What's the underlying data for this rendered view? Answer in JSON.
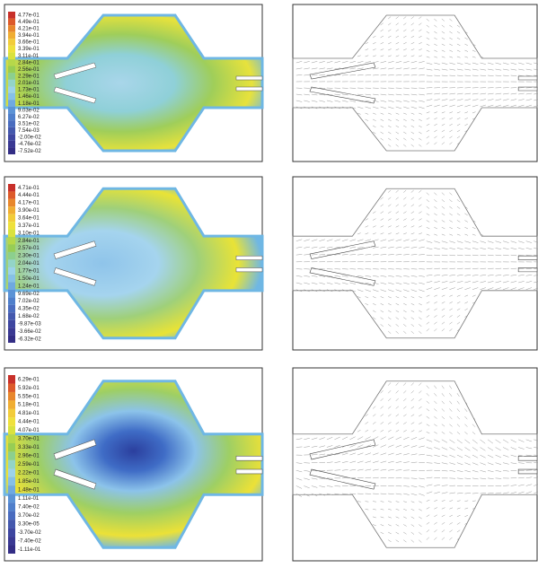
{
  "panels": [
    {
      "colorbar": [
        "4.77e-01",
        "4.49e-01",
        "4.21e-01",
        "3.94e-01",
        "3.66e-01",
        "3.39e-01",
        "3.11e-01",
        "2.84e-01",
        "2.56e-01",
        "2.29e-01",
        "2.01e-01",
        "1.73e-01",
        "1.46e-01",
        "1.18e-01",
        "9.03e-02",
        "6.27e-02",
        "3.51e-02",
        "7.54e-03",
        "-2.00e-02",
        "-4.76e-02",
        "-7.52e-02"
      ]
    },
    {
      "colorbar": [
        "4.71e-01",
        "4.44e-01",
        "4.17e-01",
        "3.90e-01",
        "3.64e-01",
        "3.37e-01",
        "3.10e-01",
        "2.84e-01",
        "2.57e-01",
        "2.30e-01",
        "2.04e-01",
        "1.77e-01",
        "1.50e-01",
        "1.24e-01",
        "9.69e-02",
        "7.02e-02",
        "4.35e-02",
        "1.68e-02",
        "-9.87e-03",
        "-3.66e-02",
        "-6.32e-02"
      ]
    },
    {
      "colorbar": [
        "6.29e-01",
        "5.92e-01",
        "5.55e-01",
        "5.18e-01",
        "4.81e-01",
        "4.44e-01",
        "4.07e-01",
        "3.70e-01",
        "3.33e-01",
        "2.96e-01",
        "2.59e-01",
        "2.22e-01",
        "1.85e-01",
        "1.48e-01",
        "1.11e-01",
        "7.40e-02",
        "3.70e-02",
        "3.30e-05",
        "-3.70e-02",
        "-7.40e-02",
        "-1.11e-01"
      ]
    }
  ]
}
